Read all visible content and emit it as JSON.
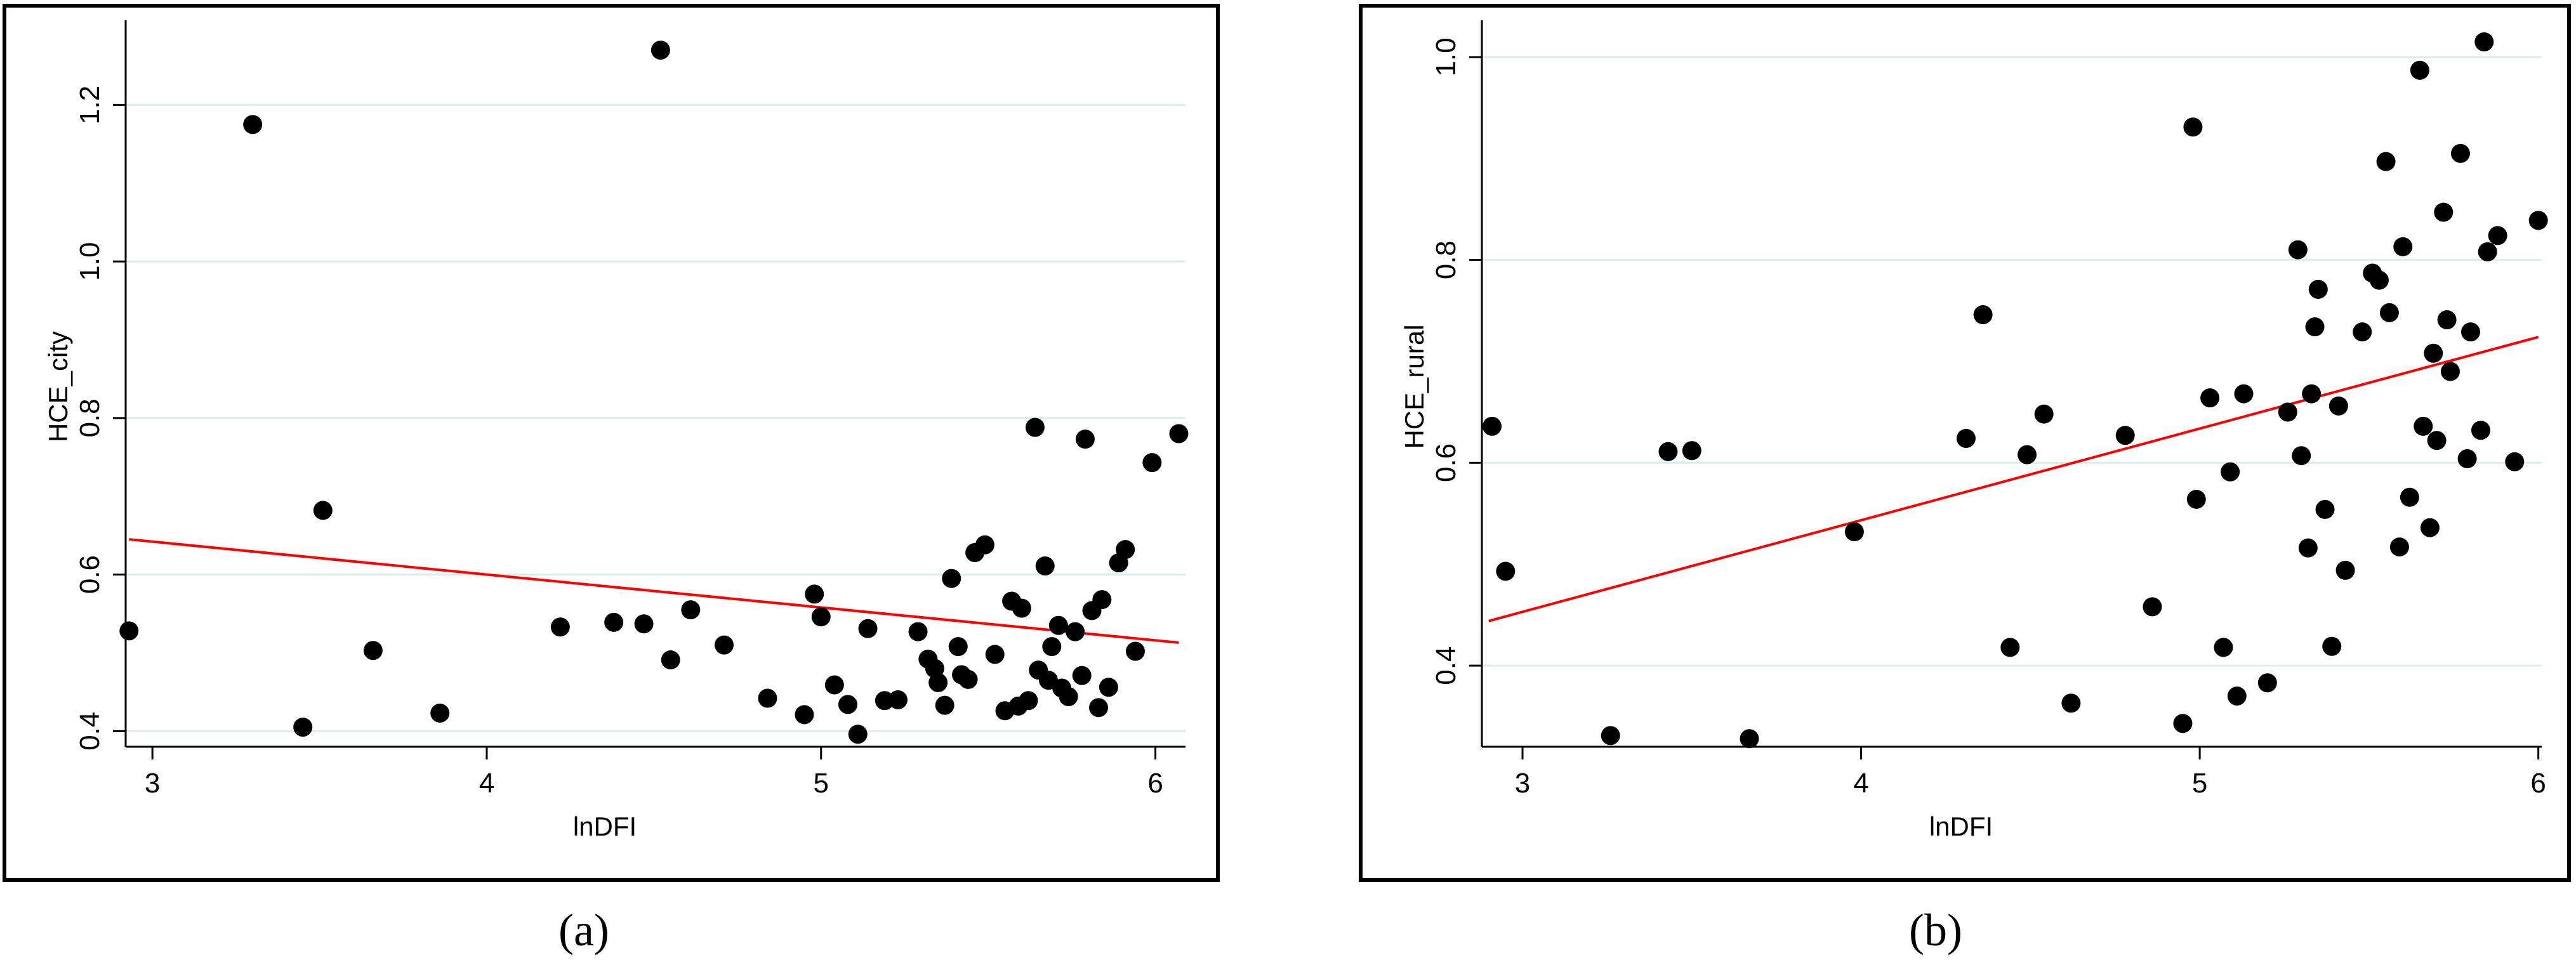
{
  "colors": {
    "grid": "#dcebeb",
    "fit_line": "#ff0000",
    "point": "#000000",
    "axis": "#000000"
  },
  "captions": {
    "a": "(a)",
    "b": "(b)"
  },
  "chart_data": [
    {
      "type": "scatter",
      "id": "a",
      "xlabel": "lnDFI",
      "ylabel": "HCE_city",
      "xlim": [
        2.92,
        6.09
      ],
      "ylim": [
        0.38,
        1.3
      ],
      "xticks": [
        3,
        4,
        5,
        6
      ],
      "xtick_labels": [
        "3",
        "4",
        "5",
        "6"
      ],
      "yticks": [
        0.4,
        0.6,
        0.8,
        1.0,
        1.2
      ],
      "ytick_labels": [
        "0.4",
        "0.6",
        "0.8",
        "1.0",
        "1.2"
      ],
      "grid": true,
      "fit_line": {
        "x": [
          2.93,
          6.07
        ],
        "y": [
          0.645,
          0.513
        ]
      },
      "points": [
        [
          2.93,
          0.528
        ],
        [
          3.3,
          1.175
        ],
        [
          3.45,
          0.405
        ],
        [
          3.51,
          0.682
        ],
        [
          3.66,
          0.503
        ],
        [
          3.86,
          0.423
        ],
        [
          4.22,
          0.533
        ],
        [
          4.38,
          0.539
        ],
        [
          4.47,
          0.537
        ],
        [
          4.52,
          1.27
        ],
        [
          4.55,
          0.491
        ],
        [
          4.61,
          0.555
        ],
        [
          4.71,
          0.51
        ],
        [
          4.84,
          0.442
        ],
        [
          4.95,
          0.421
        ],
        [
          4.98,
          0.575
        ],
        [
          5.0,
          0.546
        ],
        [
          5.04,
          0.459
        ],
        [
          5.08,
          0.434
        ],
        [
          5.11,
          0.396
        ],
        [
          5.14,
          0.531
        ],
        [
          5.19,
          0.439
        ],
        [
          5.23,
          0.44
        ],
        [
          5.29,
          0.527
        ],
        [
          5.32,
          0.492
        ],
        [
          5.34,
          0.48
        ],
        [
          5.35,
          0.462
        ],
        [
          5.37,
          0.433
        ],
        [
          5.39,
          0.595
        ],
        [
          5.41,
          0.508
        ],
        [
          5.42,
          0.472
        ],
        [
          5.44,
          0.466
        ],
        [
          5.46,
          0.628
        ],
        [
          5.49,
          0.638
        ],
        [
          5.52,
          0.498
        ],
        [
          5.55,
          0.426
        ],
        [
          5.57,
          0.566
        ],
        [
          5.59,
          0.432
        ],
        [
          5.6,
          0.557
        ],
        [
          5.62,
          0.439
        ],
        [
          5.64,
          0.788
        ],
        [
          5.65,
          0.478
        ],
        [
          5.67,
          0.611
        ],
        [
          5.68,
          0.465
        ],
        [
          5.69,
          0.508
        ],
        [
          5.71,
          0.535
        ],
        [
          5.72,
          0.455
        ],
        [
          5.74,
          0.444
        ],
        [
          5.76,
          0.527
        ],
        [
          5.78,
          0.471
        ],
        [
          5.79,
          0.773
        ],
        [
          5.81,
          0.554
        ],
        [
          5.83,
          0.43
        ],
        [
          5.84,
          0.568
        ],
        [
          5.86,
          0.456
        ],
        [
          5.89,
          0.615
        ],
        [
          5.91,
          0.632
        ],
        [
          5.94,
          0.502
        ],
        [
          5.99,
          0.743
        ],
        [
          6.07,
          0.78
        ]
      ]
    },
    {
      "type": "scatter",
      "id": "b",
      "xlabel": "lnDFI",
      "ylabel": "HCE_rural",
      "xlim": [
        2.88,
        6.01
      ],
      "ylim": [
        0.32,
        1.03
      ],
      "xticks": [
        3,
        4,
        5,
        6
      ],
      "xtick_labels": [
        "3",
        "4",
        "5",
        "6"
      ],
      "yticks": [
        0.4,
        0.6,
        0.8,
        1.0
      ],
      "ytick_labels": [
        "0.4",
        "0.6",
        "0.8",
        "1.0"
      ],
      "grid": true,
      "fit_line": {
        "x": [
          2.9,
          6.0
        ],
        "y": [
          0.444,
          0.724
        ]
      },
      "points": [
        [
          2.91,
          0.636
        ],
        [
          2.95,
          0.493
        ],
        [
          3.26,
          0.331
        ],
        [
          3.43,
          0.611
        ],
        [
          3.5,
          0.612
        ],
        [
          3.67,
          0.328
        ],
        [
          3.98,
          0.532
        ],
        [
          4.31,
          0.624
        ],
        [
          4.36,
          0.746
        ],
        [
          4.44,
          0.418
        ],
        [
          4.49,
          0.608
        ],
        [
          4.54,
          0.648
        ],
        [
          4.62,
          0.363
        ],
        [
          4.78,
          0.627
        ],
        [
          4.86,
          0.458
        ],
        [
          4.95,
          0.343
        ],
        [
          4.98,
          0.931
        ],
        [
          4.99,
          0.564
        ],
        [
          5.03,
          0.664
        ],
        [
          5.07,
          0.418
        ],
        [
          5.09,
          0.591
        ],
        [
          5.11,
          0.37
        ],
        [
          5.13,
          0.668
        ],
        [
          5.2,
          0.383
        ],
        [
          5.26,
          0.65
        ],
        [
          5.29,
          0.81
        ],
        [
          5.3,
          0.607
        ],
        [
          5.32,
          0.516
        ],
        [
          5.33,
          0.668
        ],
        [
          5.34,
          0.734
        ],
        [
          5.35,
          0.771
        ],
        [
          5.37,
          0.554
        ],
        [
          5.39,
          0.419
        ],
        [
          5.41,
          0.656
        ],
        [
          5.43,
          0.494
        ],
        [
          5.48,
          0.729
        ],
        [
          5.51,
          0.787
        ],
        [
          5.53,
          0.78
        ],
        [
          5.55,
          0.897
        ],
        [
          5.56,
          0.748
        ],
        [
          5.59,
          0.517
        ],
        [
          5.6,
          0.813
        ],
        [
          5.62,
          0.566
        ],
        [
          5.65,
          0.987
        ],
        [
          5.66,
          0.636
        ],
        [
          5.68,
          0.536
        ],
        [
          5.69,
          0.708
        ],
        [
          5.7,
          0.622
        ],
        [
          5.72,
          0.847
        ],
        [
          5.73,
          0.741
        ],
        [
          5.74,
          0.69
        ],
        [
          5.77,
          0.905
        ],
        [
          5.79,
          0.604
        ],
        [
          5.8,
          0.729
        ],
        [
          5.83,
          0.632
        ],
        [
          5.84,
          1.015
        ],
        [
          5.85,
          0.808
        ],
        [
          5.88,
          0.824
        ],
        [
          5.93,
          0.601
        ],
        [
          6.0,
          0.839
        ]
      ]
    }
  ]
}
